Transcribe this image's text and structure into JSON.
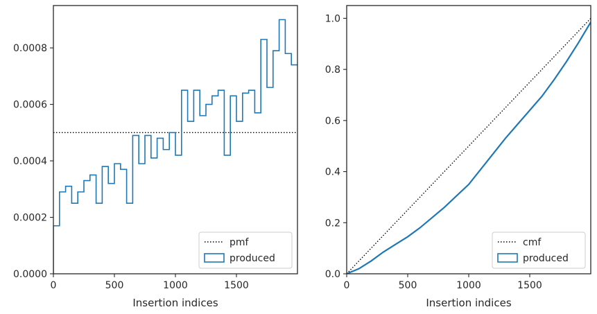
{
  "chart_data": [
    {
      "type": "histogram-step",
      "xlabel": "Insertion indices",
      "ylabel": "",
      "xlim": [
        0,
        2000
      ],
      "ylim": [
        0,
        0.00095
      ],
      "xticks": [
        "0",
        "500",
        "1000",
        "1500"
      ],
      "yticks": [
        "0.0000",
        "0.0002",
        "0.0004",
        "0.0006",
        "0.0008"
      ],
      "ytick_values": [
        0,
        0.0002,
        0.0004,
        0.0006,
        0.0008
      ],
      "xtick_values": [
        0,
        500,
        1000,
        1500
      ],
      "legend_position": "lower-right",
      "series": [
        {
          "name": "pmf",
          "style": "dotted",
          "color": "#000000",
          "value": 0.0005
        },
        {
          "name": "produced",
          "style": "step",
          "color": "#1f77b4",
          "bin_width": 50,
          "values": [
            0.00017,
            0.00029,
            0.00031,
            0.00025,
            0.00029,
            0.00033,
            0.00035,
            0.00025,
            0.00038,
            0.00032,
            0.00039,
            0.00037,
            0.00025,
            0.00049,
            0.00039,
            0.00049,
            0.00041,
            0.00048,
            0.00044,
            0.0005,
            0.00042,
            0.00065,
            0.00054,
            0.00065,
            0.00056,
            0.0006,
            0.00063,
            0.00065,
            0.00042,
            0.00063,
            0.00054,
            0.00064,
            0.00065,
            0.00057,
            0.00083,
            0.00066,
            0.00079,
            0.0009,
            0.00078,
            0.00074
          ]
        }
      ]
    },
    {
      "type": "line",
      "xlabel": "Insertion indices",
      "ylabel": "",
      "xlim": [
        0,
        2000
      ],
      "ylim": [
        0,
        1.05
      ],
      "xticks": [
        "0",
        "500",
        "1000",
        "1500"
      ],
      "yticks": [
        "0.0",
        "0.2",
        "0.4",
        "0.6",
        "0.8",
        "1.0"
      ],
      "ytick_values": [
        0,
        0.2,
        0.4,
        0.6,
        0.8,
        1.0
      ],
      "xtick_values": [
        0,
        500,
        1000,
        1500
      ],
      "legend_position": "lower-right",
      "series": [
        {
          "name": "cmf",
          "style": "dotted",
          "color": "#000000",
          "x": [
            0,
            2000
          ],
          "y": [
            0,
            1.0
          ]
        },
        {
          "name": "produced",
          "style": "solid",
          "color": "#1f77b4",
          "x": [
            0,
            100,
            200,
            300,
            400,
            500,
            600,
            700,
            800,
            900,
            1000,
            1100,
            1200,
            1300,
            1400,
            1500,
            1600,
            1700,
            1800,
            1900,
            2000
          ],
          "y": [
            0,
            0.02,
            0.05,
            0.085,
            0.115,
            0.145,
            0.18,
            0.22,
            0.26,
            0.305,
            0.35,
            0.41,
            0.47,
            0.53,
            0.585,
            0.64,
            0.695,
            0.76,
            0.83,
            0.905,
            0.985
          ]
        }
      ]
    }
  ]
}
